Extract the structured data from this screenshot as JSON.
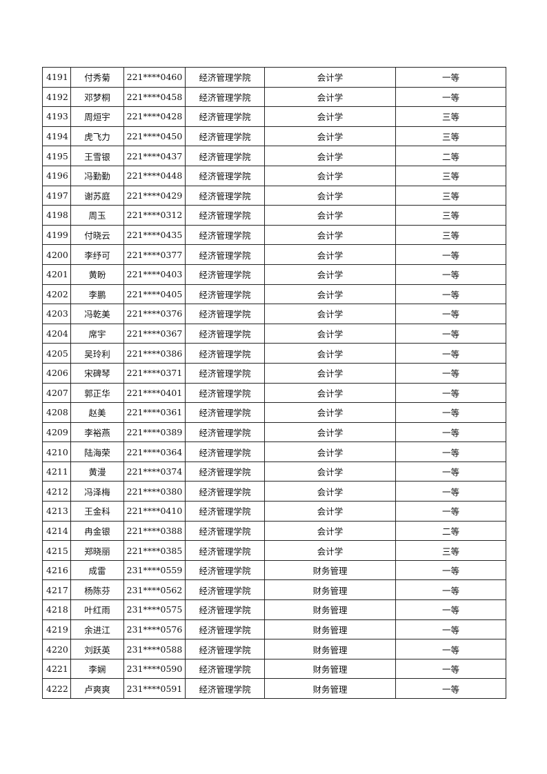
{
  "rows": [
    [
      "4191",
      "付秀菊",
      "221****0460",
      "经济管理学院",
      "会计学",
      "一等"
    ],
    [
      "4192",
      "邓梦桐",
      "221****0458",
      "经济管理学院",
      "会计学",
      "一等"
    ],
    [
      "4193",
      "周烜宇",
      "221****0428",
      "经济管理学院",
      "会计学",
      "三等"
    ],
    [
      "4194",
      "虎飞力",
      "221****0450",
      "经济管理学院",
      "会计学",
      "三等"
    ],
    [
      "4195",
      "王雪银",
      "221****0437",
      "经济管理学院",
      "会计学",
      "二等"
    ],
    [
      "4196",
      "冯勤勤",
      "221****0448",
      "经济管理学院",
      "会计学",
      "三等"
    ],
    [
      "4197",
      "谢苏庭",
      "221****0429",
      "经济管理学院",
      "会计学",
      "三等"
    ],
    [
      "4198",
      "周玉",
      "221****0312",
      "经济管理学院",
      "会计学",
      "三等"
    ],
    [
      "4199",
      "付晓云",
      "221****0435",
      "经济管理学院",
      "会计学",
      "三等"
    ],
    [
      "4200",
      "李纾可",
      "221****0377",
      "经济管理学院",
      "会计学",
      "一等"
    ],
    [
      "4201",
      "黄盼",
      "221****0403",
      "经济管理学院",
      "会计学",
      "一等"
    ],
    [
      "4202",
      "李鹏",
      "221****0405",
      "经济管理学院",
      "会计学",
      "一等"
    ],
    [
      "4203",
      "冯乾美",
      "221****0376",
      "经济管理学院",
      "会计学",
      "一等"
    ],
    [
      "4204",
      "席宇",
      "221****0367",
      "经济管理学院",
      "会计学",
      "一等"
    ],
    [
      "4205",
      "吴玲利",
      "221****0386",
      "经济管理学院",
      "会计学",
      "一等"
    ],
    [
      "4206",
      "宋碑琴",
      "221****0371",
      "经济管理学院",
      "会计学",
      "一等"
    ],
    [
      "4207",
      "郭正华",
      "221****0401",
      "经济管理学院",
      "会计学",
      "一等"
    ],
    [
      "4208",
      "赵美",
      "221****0361",
      "经济管理学院",
      "会计学",
      "一等"
    ],
    [
      "4209",
      "李裕燕",
      "221****0389",
      "经济管理学院",
      "会计学",
      "一等"
    ],
    [
      "4210",
      "陆海荣",
      "221****0364",
      "经济管理学院",
      "会计学",
      "一等"
    ],
    [
      "4211",
      "黄漫",
      "221****0374",
      "经济管理学院",
      "会计学",
      "一等"
    ],
    [
      "4212",
      "冯泽梅",
      "221****0380",
      "经济管理学院",
      "会计学",
      "一等"
    ],
    [
      "4213",
      "王金科",
      "221****0410",
      "经济管理学院",
      "会计学",
      "一等"
    ],
    [
      "4214",
      "冉金银",
      "221****0388",
      "经济管理学院",
      "会计学",
      "二等"
    ],
    [
      "4215",
      "郑晓丽",
      "221****0385",
      "经济管理学院",
      "会计学",
      "三等"
    ],
    [
      "4216",
      "成雷",
      "231****0559",
      "经济管理学院",
      "财务管理",
      "一等"
    ],
    [
      "4217",
      "杨陈芬",
      "231****0562",
      "经济管理学院",
      "财务管理",
      "一等"
    ],
    [
      "4218",
      "叶红雨",
      "231****0575",
      "经济管理学院",
      "财务管理",
      "一等"
    ],
    [
      "4219",
      "余进江",
      "231****0576",
      "经济管理学院",
      "财务管理",
      "一等"
    ],
    [
      "4220",
      "刘跃英",
      "231****0588",
      "经济管理学院",
      "财务管理",
      "一等"
    ],
    [
      "4221",
      "李娴",
      "231****0590",
      "经济管理学院",
      "财务管理",
      "一等"
    ],
    [
      "4222",
      "卢爽爽",
      "231****0591",
      "经济管理学院",
      "财务管理",
      "一等"
    ]
  ]
}
